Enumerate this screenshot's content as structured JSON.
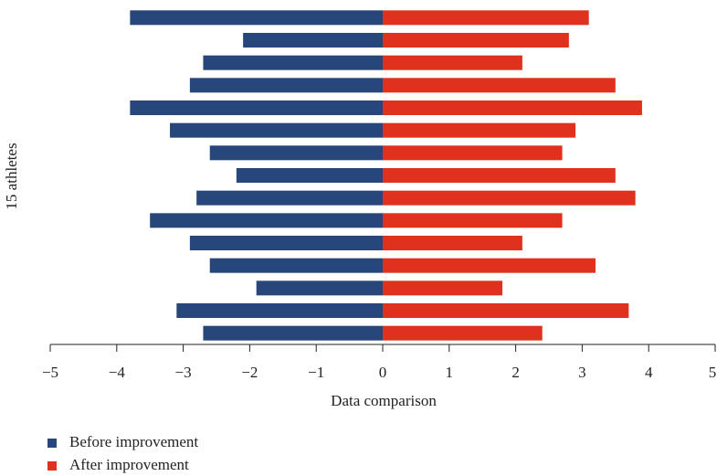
{
  "chart_data": {
    "type": "diverging-bar",
    "ylabel": "15 athletes",
    "xlabel": "Data comparison",
    "categories": [
      null,
      null,
      null,
      null,
      null,
      null,
      null,
      null,
      null,
      null,
      null,
      null,
      null,
      null,
      null
    ],
    "series": [
      {
        "name": "Before improvement",
        "color": "#27477a",
        "values": [
          -3.8,
          -2.1,
          -2.7,
          -2.9,
          -3.8,
          -3.2,
          -2.6,
          -2.2,
          -2.8,
          -3.5,
          -2.9,
          -2.6,
          -1.9,
          -3.1,
          -2.7
        ]
      },
      {
        "name": "After improvement",
        "color": "#e0301e",
        "values": [
          3.1,
          2.8,
          2.1,
          3.5,
          3.9,
          2.9,
          2.7,
          3.5,
          3.8,
          2.7,
          2.1,
          3.2,
          1.8,
          3.7,
          2.4
        ]
      }
    ],
    "xlim": [
      -5,
      5
    ],
    "xticks": [
      {
        "value": -5,
        "label": "−5"
      },
      {
        "value": -4,
        "label": "−4"
      },
      {
        "value": -3,
        "label": "−3"
      },
      {
        "value": -2,
        "label": "−2"
      },
      {
        "value": -1,
        "label": "−1"
      },
      0,
      1,
      2,
      3,
      4,
      5
    ],
    "legend": "bottom-left"
  }
}
